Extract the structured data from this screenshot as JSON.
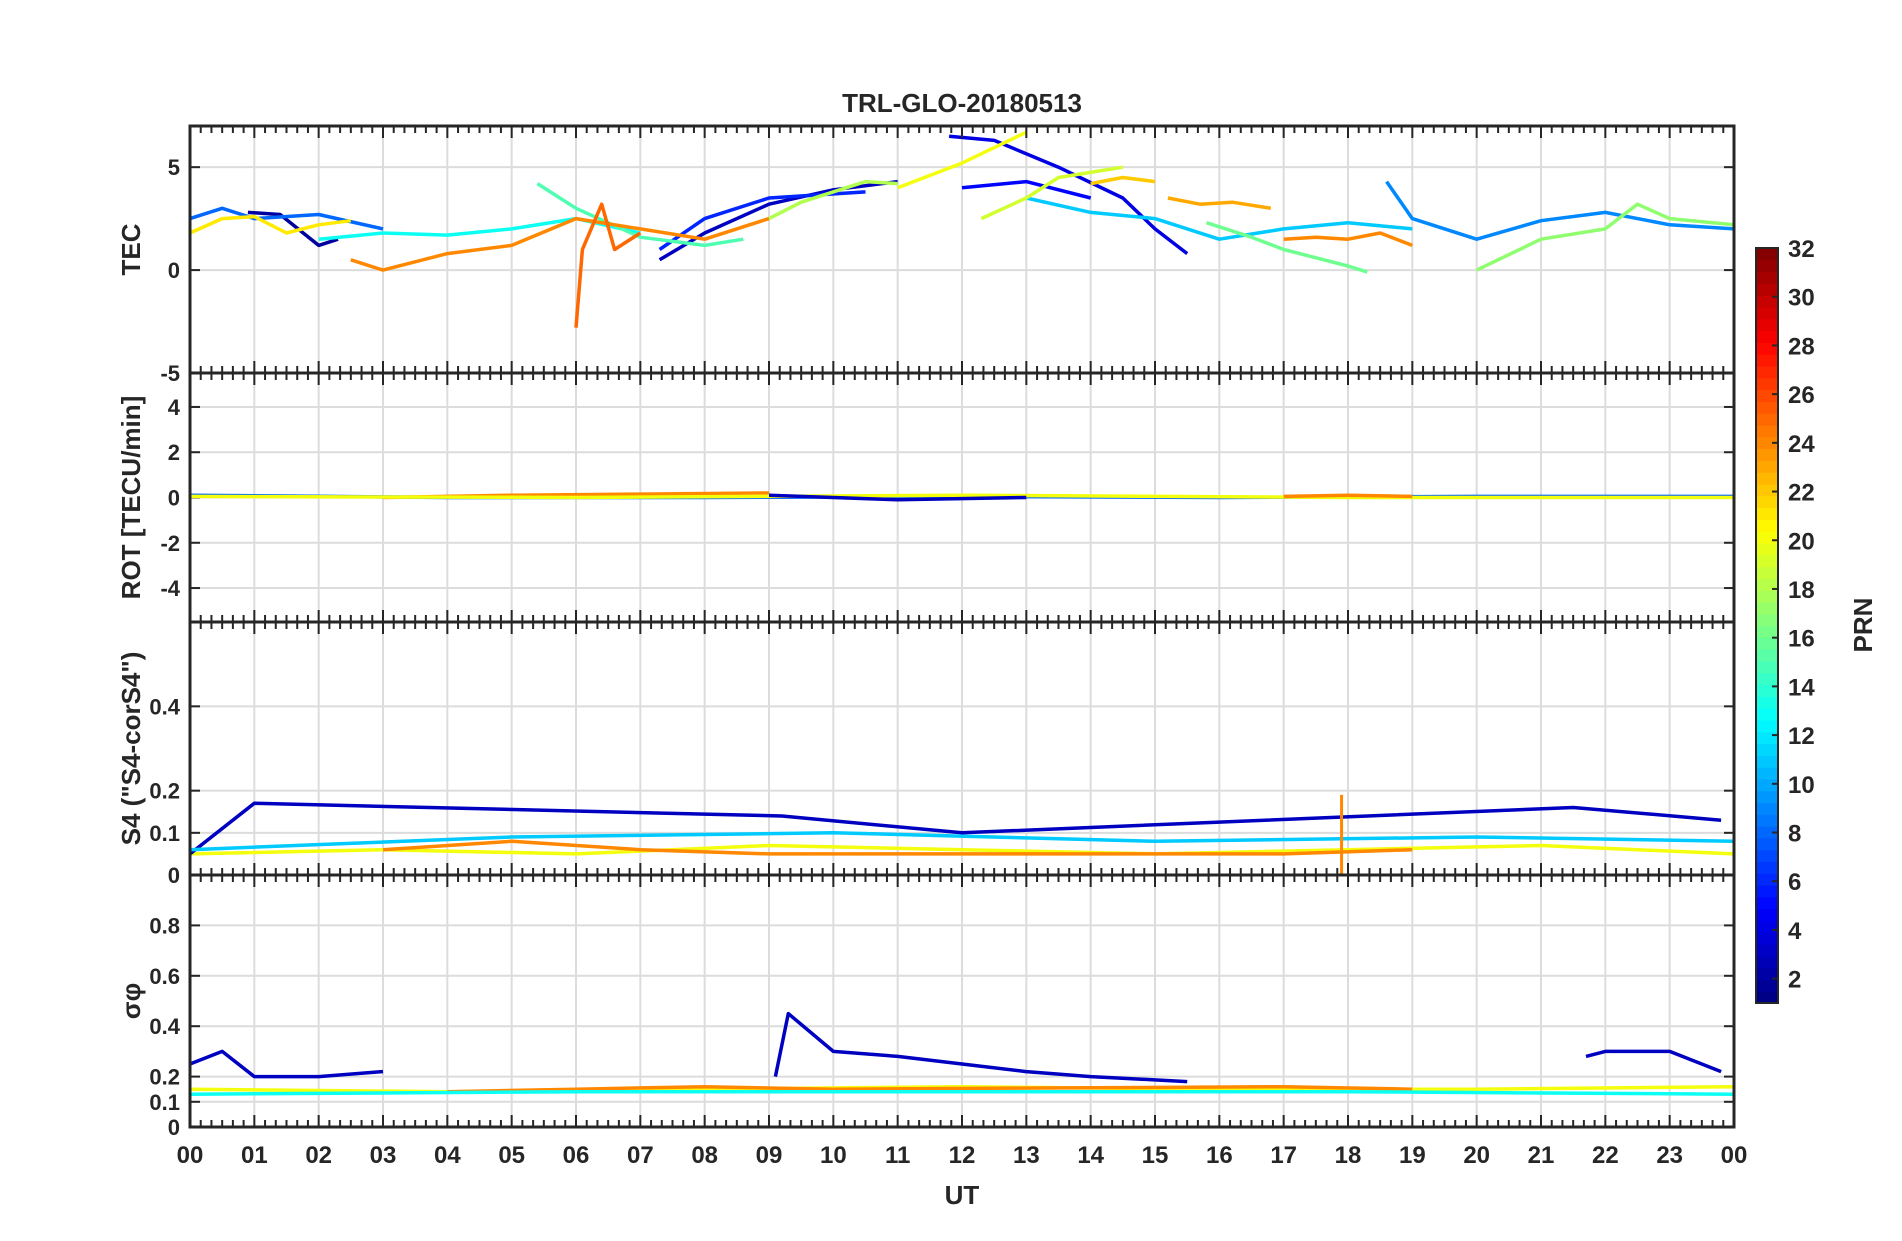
{
  "chart_data": {
    "type": "line",
    "title": "TRL-GLO-20180513",
    "xlabel": "UT",
    "x_ticks": [
      "00",
      "01",
      "02",
      "03",
      "04",
      "05",
      "06",
      "07",
      "08",
      "09",
      "10",
      "11",
      "12",
      "13",
      "14",
      "15",
      "16",
      "17",
      "18",
      "19",
      "20",
      "21",
      "22",
      "23",
      "00"
    ],
    "xlim": [
      0,
      24
    ],
    "colorbar": {
      "label": "PRN",
      "range": [
        1,
        32
      ],
      "ticks": [
        "2",
        "4",
        "6",
        "8",
        "10",
        "12",
        "14",
        "16",
        "18",
        "20",
        "22",
        "24",
        "26",
        "28",
        "30",
        "32"
      ]
    },
    "panels": [
      {
        "ylabel": "TEC",
        "ylim": [
          -5,
          7
        ],
        "yticks": [
          "-5",
          "0",
          "5"
        ],
        "series": [
          {
            "prn": 2,
            "x": [
              0.9,
              1.4,
              2.0,
              2.3
            ],
            "y": [
              2.8,
              2.7,
              1.2,
              1.5
            ]
          },
          {
            "prn": 3,
            "x": [
              7.3,
              8.0,
              9.0,
              10.0,
              11.0
            ],
            "y": [
              0.5,
              1.8,
              3.2,
              3.9,
              4.3
            ]
          },
          {
            "prn": 4,
            "x": [
              11.8,
              12.5,
              13.5,
              14.5,
              15.0,
              15.5
            ],
            "y": [
              6.5,
              6.3,
              5.0,
              3.5,
              2.0,
              0.8
            ]
          },
          {
            "prn": 5,
            "x": [
              12.0,
              13.0,
              14.0
            ],
            "y": [
              4.0,
              4.3,
              3.5
            ]
          },
          {
            "prn": 6,
            "x": [
              7.3,
              8.0,
              9.0,
              10.5
            ],
            "y": [
              1.0,
              2.5,
              3.5,
              3.8
            ]
          },
          {
            "prn": 8,
            "x": [
              0.0,
              0.5,
              1.0,
              2.0,
              3.0
            ],
            "y": [
              2.5,
              3.0,
              2.5,
              2.7,
              2.0
            ]
          },
          {
            "prn": 9,
            "x": [
              18.6,
              19.0,
              20.0,
              21.0,
              22.0,
              23.0,
              24.0
            ],
            "y": [
              4.3,
              2.5,
              1.5,
              2.4,
              2.8,
              2.2,
              2.0
            ]
          },
          {
            "prn": 11,
            "x": [
              13.0,
              14.0,
              15.0,
              16.0,
              17.0,
              18.0,
              19.0
            ],
            "y": [
              3.5,
              2.8,
              2.5,
              1.5,
              2.0,
              2.3,
              2.0
            ]
          },
          {
            "prn": 13,
            "x": [
              2.0,
              3.0,
              4.0,
              5.0,
              6.0,
              7.0
            ],
            "y": [
              1.5,
              1.8,
              1.7,
              2.0,
              2.5,
              1.8
            ]
          },
          {
            "prn": 15,
            "x": [
              5.4,
              6.0,
              7.0,
              8.0,
              8.6
            ],
            "y": [
              4.2,
              3.0,
              1.6,
              1.2,
              1.5
            ]
          },
          {
            "prn": 16,
            "x": [
              15.8,
              16.5,
              17.0,
              18.0,
              18.3
            ],
            "y": [
              2.3,
              1.6,
              1.0,
              0.2,
              -0.1
            ]
          },
          {
            "prn": 18,
            "x": [
              9.0,
              9.5,
              10.5,
              11.0
            ],
            "y": [
              2.5,
              3.3,
              4.3,
              4.2
            ]
          },
          {
            "prn": 19,
            "x": [
              12.3,
              13.0,
              13.5,
              14.5
            ],
            "y": [
              2.5,
              3.5,
              4.5,
              5.0
            ]
          },
          {
            "prn": 20,
            "x": [
              11.0,
              12.0,
              13.0
            ],
            "y": [
              4.0,
              5.2,
              6.7
            ]
          },
          {
            "prn": 21,
            "x": [
              0.0,
              0.5,
              1.0,
              1.5,
              2.0,
              2.5
            ],
            "y": [
              1.8,
              2.5,
              2.6,
              1.8,
              2.2,
              2.4
            ]
          },
          {
            "prn": 22,
            "x": [
              14.0,
              14.5,
              15.0
            ],
            "y": [
              4.2,
              4.5,
              4.3
            ]
          },
          {
            "prn": 23,
            "x": [
              15.2,
              15.7,
              16.2,
              16.8
            ],
            "y": [
              3.5,
              3.2,
              3.3,
              3.0
            ]
          },
          {
            "prn": 24,
            "x": [
              2.5,
              3.0,
              4.0,
              5.0,
              6.0,
              7.0,
              8.0,
              9.0
            ],
            "y": [
              0.5,
              0.0,
              0.8,
              1.2,
              2.5,
              2.0,
              1.5,
              2.5
            ]
          },
          {
            "prn": 25,
            "x": [
              6.0,
              6.1,
              6.4,
              6.6,
              7.0
            ],
            "y": [
              -2.8,
              1.0,
              3.2,
              1.0,
              1.8
            ]
          },
          {
            "prn": 24,
            "x": [
              17.0,
              17.5,
              18.0,
              18.5,
              19.0
            ],
            "y": [
              1.5,
              1.6,
              1.5,
              1.8,
              1.2
            ]
          },
          {
            "prn": 17,
            "x": [
              20.0,
              21.0,
              22.0,
              22.5,
              23.0,
              24.0
            ],
            "y": [
              0.0,
              1.5,
              2.0,
              3.2,
              2.5,
              2.2
            ]
          }
        ]
      },
      {
        "ylabel": "ROT [TECU/min]",
        "ylim": [
          -5.5,
          5.5
        ],
        "yticks": [
          "-4",
          "-2",
          "0",
          "2",
          "4"
        ],
        "series": [
          {
            "prn": 8,
            "x": [
              0,
              4,
              8,
              12,
              16,
              20,
              24
            ],
            "y": [
              0.1,
              0.0,
              0.0,
              0.05,
              0.0,
              0.05,
              0.05
            ]
          },
          {
            "prn": 24,
            "x": [
              3,
              5,
              7,
              9
            ],
            "y": [
              0.0,
              0.1,
              0.15,
              0.2
            ]
          },
          {
            "prn": 20,
            "x": [
              0,
              6,
              12,
              18,
              24
            ],
            "y": [
              0.05,
              0.0,
              0.1,
              0.0,
              0.0
            ]
          },
          {
            "prn": 3,
            "x": [
              9,
              11,
              13
            ],
            "y": [
              0.1,
              -0.1,
              0.0
            ]
          },
          {
            "prn": 24,
            "x": [
              17,
              18,
              19
            ],
            "y": [
              0.05,
              0.1,
              0.05
            ]
          }
        ]
      },
      {
        "ylabel": "S4 (\"S4-corS4\")",
        "ylim": [
          0,
          0.6
        ],
        "yticks": [
          "0",
          "0.1",
          "0.2",
          "0.4"
        ],
        "series": [
          {
            "prn": 20,
            "x": [
              0,
              3,
              6,
              9,
              12,
              15,
              18,
              21,
              24
            ],
            "y": [
              0.05,
              0.06,
              0.05,
              0.07,
              0.06,
              0.05,
              0.06,
              0.07,
              0.05
            ]
          },
          {
            "prn": 24,
            "x": [
              3,
              5,
              7,
              9,
              17,
              19
            ],
            "y": [
              0.06,
              0.08,
              0.06,
              0.05,
              0.05,
              0.06
            ]
          },
          {
            "prn": 3,
            "x": [
              0,
              1,
              9.2,
              12,
              21.5,
              23.8
            ],
            "y": [
              0.05,
              0.17,
              0.14,
              0.1,
              0.16,
              0.13
            ]
          },
          {
            "prn": 11,
            "x": [
              0,
              5,
              10,
              15,
              20,
              24
            ],
            "y": [
              0.06,
              0.09,
              0.1,
              0.08,
              0.09,
              0.08
            ]
          },
          {
            "prn": 24,
            "x": [
              17.9
            ],
            "y": [
              0.19
            ]
          }
        ]
      },
      {
        "ylabel": "σφ",
        "ylim": [
          0,
          1
        ],
        "yticks": [
          "0",
          "0.1",
          "0.2",
          "0.4",
          "0.6",
          "0.8"
        ],
        "series": [
          {
            "prn": 3,
            "x": [
              0,
              0.5,
              1,
              2,
              3
            ],
            "y": [
              0.25,
              0.3,
              0.2,
              0.2,
              0.22
            ]
          },
          {
            "prn": 3,
            "x": [
              9.1,
              9.3,
              10,
              11,
              12,
              13,
              14,
              15.5
            ],
            "y": [
              0.2,
              0.45,
              0.3,
              0.28,
              0.25,
              0.22,
              0.2,
              0.18
            ]
          },
          {
            "prn": 3,
            "x": [
              21.7,
              22,
              23,
              23.8
            ],
            "y": [
              0.28,
              0.3,
              0.3,
              0.22
            ]
          },
          {
            "prn": 20,
            "x": [
              0,
              4,
              8,
              12,
              16,
              20,
              24
            ],
            "y": [
              0.15,
              0.14,
              0.15,
              0.16,
              0.15,
              0.15,
              0.16
            ]
          },
          {
            "prn": 24,
            "x": [
              4,
              6,
              8,
              10,
              17,
              19
            ],
            "y": [
              0.14,
              0.15,
              0.16,
              0.15,
              0.16,
              0.15
            ]
          },
          {
            "prn": 13,
            "x": [
              0,
              6,
              12,
              18,
              24
            ],
            "y": [
              0.13,
              0.14,
              0.14,
              0.14,
              0.13
            ]
          }
        ]
      }
    ]
  }
}
